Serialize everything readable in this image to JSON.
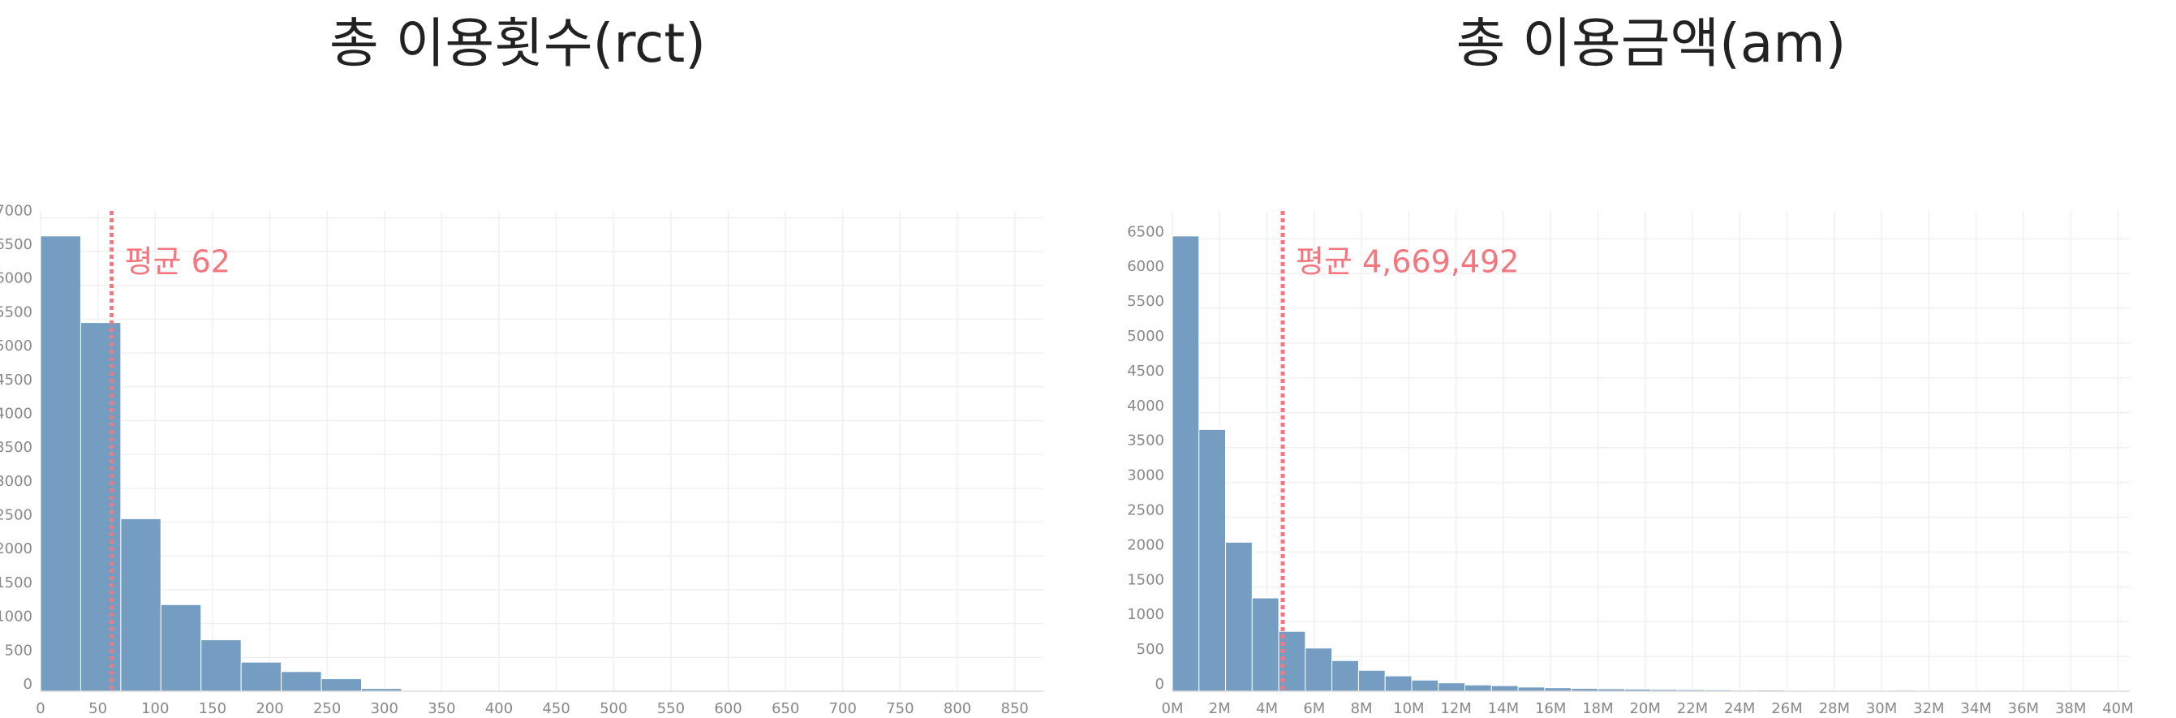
{
  "chart_data": [
    {
      "type": "histogram",
      "title": "총 이용횟수(rct)",
      "bins": [
        0,
        35,
        70,
        105,
        140,
        175,
        210,
        245,
        280,
        315,
        350,
        385,
        420,
        455,
        490,
        525,
        560,
        595,
        630,
        665,
        700,
        735,
        770,
        805,
        840,
        875
      ],
      "counts": [
        6730,
        5450,
        2550,
        1280,
        760,
        430,
        290,
        185,
        40,
        10,
        5,
        3,
        2,
        1,
        1,
        0,
        0,
        1,
        0,
        0,
        0,
        0,
        0,
        0,
        1
      ],
      "color": "#749dc1",
      "xlim": [
        0,
        875
      ],
      "ylim": [
        0,
        7100
      ],
      "xticks": [
        0,
        50,
        100,
        150,
        200,
        250,
        300,
        350,
        400,
        450,
        500,
        550,
        600,
        650,
        700,
        750,
        800,
        850
      ],
      "yticks": [
        0,
        500,
        1000,
        1500,
        2000,
        2500,
        3000,
        3500,
        4000,
        4500,
        5000,
        5500,
        6000,
        6500,
        7000
      ],
      "grid": true,
      "mean": {
        "value": 62,
        "label": "평균 62"
      },
      "mean_color": "#f4777f"
    },
    {
      "type": "histogram",
      "title": "총 이용금액(am)",
      "bins": [
        0,
        1125000,
        2250000,
        3375000,
        4500000,
        5625000,
        6750000,
        7875000,
        9000000,
        10125000,
        11250000,
        12375000,
        13500000,
        14625000,
        15750000,
        16875000,
        18000000,
        19125000,
        20250000,
        21375000,
        22500000,
        23625000,
        24750000,
        25875000,
        27000000,
        28125000,
        29250000,
        30375000,
        31500000,
        32625000,
        33750000,
        34875000,
        36000000,
        37125000,
        38250000,
        39375000,
        40500000
      ],
      "counts": [
        6540,
        3760,
        2140,
        1340,
        860,
        620,
        440,
        300,
        220,
        160,
        120,
        90,
        80,
        60,
        50,
        40,
        35,
        30,
        25,
        22,
        20,
        15,
        18,
        12,
        10,
        10,
        8,
        14,
        6,
        5,
        5,
        5,
        4,
        3,
        3,
        2
      ],
      "color": "#749dc1",
      "xlim": [
        0,
        40500000
      ],
      "ylim": [
        0,
        6900
      ],
      "xticks": [
        {
          "value": 0,
          "label": "0M"
        },
        {
          "value": 2000000,
          "label": "2M"
        },
        {
          "value": 4000000,
          "label": "4M"
        },
        {
          "value": 6000000,
          "label": "6M"
        },
        {
          "value": 8000000,
          "label": "8M"
        },
        {
          "value": 10000000,
          "label": "10M"
        },
        {
          "value": 12000000,
          "label": "12M"
        },
        {
          "value": 14000000,
          "label": "14M"
        },
        {
          "value": 16000000,
          "label": "16M"
        },
        {
          "value": 18000000,
          "label": "18M"
        },
        {
          "value": 20000000,
          "label": "20M"
        },
        {
          "value": 22000000,
          "label": "22M"
        },
        {
          "value": 24000000,
          "label": "24M"
        },
        {
          "value": 26000000,
          "label": "26M"
        },
        {
          "value": 28000000,
          "label": "28M"
        },
        {
          "value": 30000000,
          "label": "30M"
        },
        {
          "value": 32000000,
          "label": "32M"
        },
        {
          "value": 34000000,
          "label": "34M"
        },
        {
          "value": 36000000,
          "label": "36M"
        },
        {
          "value": 38000000,
          "label": "38M"
        },
        {
          "value": 40000000,
          "label": "40M"
        }
      ],
      "yticks": [
        0,
        500,
        1000,
        1500,
        2000,
        2500,
        3000,
        3500,
        4000,
        4500,
        5000,
        5500,
        6000,
        6500
      ],
      "grid": true,
      "mean": {
        "value": 4669492,
        "label": "평균 4,669,492"
      },
      "mean_color": "#f4777f"
    }
  ]
}
